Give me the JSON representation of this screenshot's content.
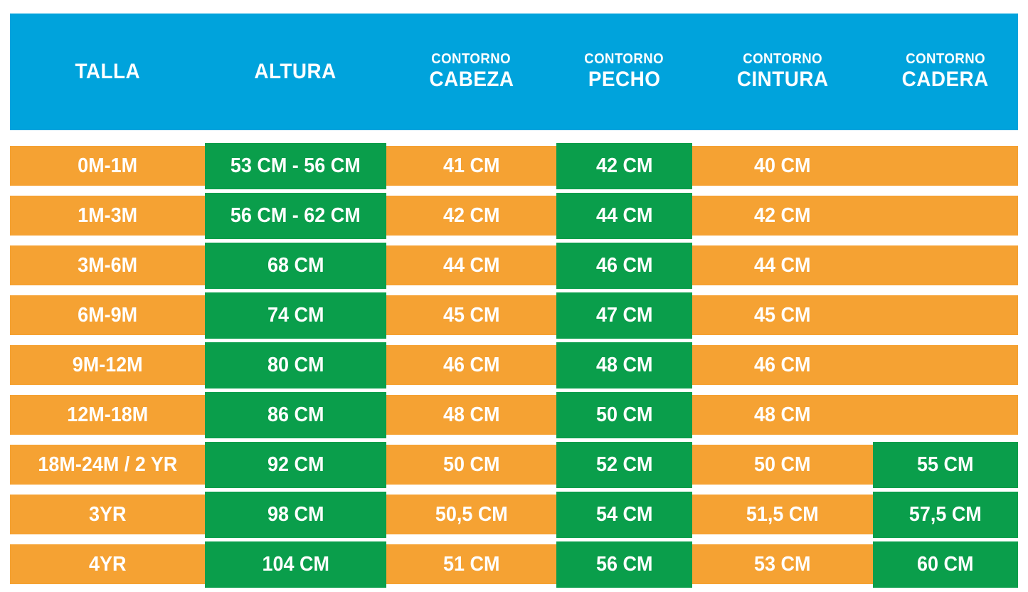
{
  "colors": {
    "header_bg": "#00A3DC",
    "row_bg": "#F5A233",
    "highlight_bg": "#0A9E4B",
    "text": "#FFFFFF"
  },
  "chart_data": {
    "type": "table",
    "title": "",
    "columns": [
      {
        "key": "talla",
        "sublabel": "",
        "label": "TALLA"
      },
      {
        "key": "altura",
        "sublabel": "",
        "label": "ALTURA"
      },
      {
        "key": "cabeza",
        "sublabel": "CONTORNO",
        "label": "CABEZA"
      },
      {
        "key": "pecho",
        "sublabel": "CONTORNO",
        "label": "PECHO"
      },
      {
        "key": "cintura",
        "sublabel": "CONTORNO",
        "label": "CINTURA"
      },
      {
        "key": "cadera",
        "sublabel": "CONTORNO",
        "label": "CADERA"
      }
    ],
    "rows": [
      {
        "cells": {
          "talla": "0M-1M",
          "altura": "53 CM - 56 CM",
          "cabeza": "41 CM",
          "pecho": "42 CM",
          "cintura": "40 CM",
          "cadera": ""
        },
        "green": [
          "altura",
          "pecho"
        ]
      },
      {
        "cells": {
          "talla": "1M-3M",
          "altura": "56 CM - 62 CM",
          "cabeza": "42 CM",
          "pecho": "44 CM",
          "cintura": "42 CM",
          "cadera": ""
        },
        "green": [
          "altura",
          "pecho"
        ]
      },
      {
        "cells": {
          "talla": "3M-6M",
          "altura": "68 CM",
          "cabeza": "44 CM",
          "pecho": "46 CM",
          "cintura": "44 CM",
          "cadera": ""
        },
        "green": [
          "altura",
          "pecho"
        ]
      },
      {
        "cells": {
          "talla": "6M-9M",
          "altura": "74 CM",
          "cabeza": "45 CM",
          "pecho": "47 CM",
          "cintura": "45 CM",
          "cadera": ""
        },
        "green": [
          "altura",
          "pecho"
        ]
      },
      {
        "cells": {
          "talla": "9M-12M",
          "altura": "80 CM",
          "cabeza": "46 CM",
          "pecho": "48 CM",
          "cintura": "46 CM",
          "cadera": ""
        },
        "green": [
          "altura",
          "pecho"
        ]
      },
      {
        "cells": {
          "talla": "12M-18M",
          "altura": "86 CM",
          "cabeza": "48 CM",
          "pecho": "50 CM",
          "cintura": "48 CM",
          "cadera": ""
        },
        "green": [
          "altura",
          "pecho"
        ]
      },
      {
        "cells": {
          "talla": "18M-24M / 2 YR",
          "altura": "92 CM",
          "cabeza": "50 CM",
          "pecho": "52 CM",
          "cintura": "50 CM",
          "cadera": "55 CM"
        },
        "green": [
          "altura",
          "pecho",
          "cadera"
        ]
      },
      {
        "cells": {
          "talla": "3YR",
          "altura": "98 CM",
          "cabeza": "50,5 CM",
          "pecho": "54 CM",
          "cintura": "51,5 CM",
          "cadera": "57,5 CM"
        },
        "green": [
          "altura",
          "pecho",
          "cadera"
        ]
      },
      {
        "cells": {
          "talla": "4YR",
          "altura": "104 CM",
          "cabeza": "51 CM",
          "pecho": "56 CM",
          "cintura": "53 CM",
          "cadera": "60 CM"
        },
        "green": [
          "altura",
          "pecho",
          "cadera"
        ]
      }
    ]
  }
}
